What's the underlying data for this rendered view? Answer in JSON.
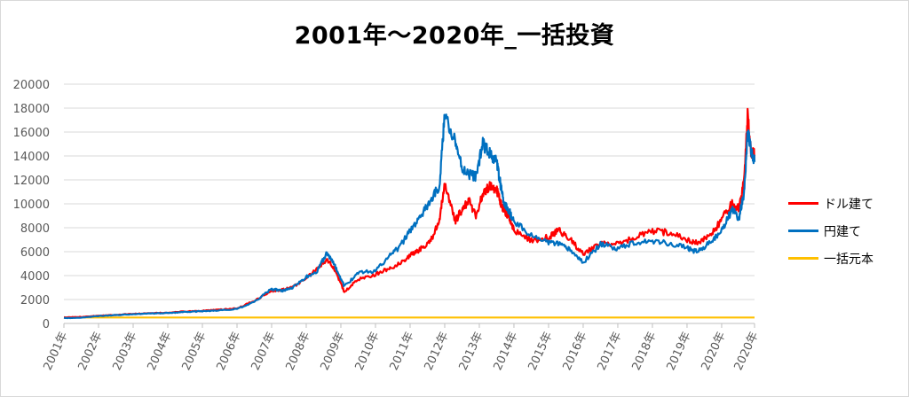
{
  "chart_data": {
    "type": "line",
    "title": "2001年～2020年_一括投資",
    "xlabel": "",
    "ylabel": "",
    "ylim": [
      0,
      20000
    ],
    "yticks": [
      0,
      2000,
      4000,
      6000,
      8000,
      10000,
      12000,
      14000,
      16000,
      18000,
      20000
    ],
    "xlim": [
      2001.0,
      2020.95
    ],
    "xticks": [
      {
        "value": 2001,
        "label": "2001年"
      },
      {
        "value": 2002,
        "label": "2002年"
      },
      {
        "value": 2003,
        "label": "2003年"
      },
      {
        "value": 2004,
        "label": "2004年"
      },
      {
        "value": 2005,
        "label": "2005年"
      },
      {
        "value": 2006,
        "label": "2006年"
      },
      {
        "value": 2007,
        "label": "2007年"
      },
      {
        "value": 2008,
        "label": "2008年"
      },
      {
        "value": 2009,
        "label": "2009年"
      },
      {
        "value": 2010,
        "label": "2010年"
      },
      {
        "value": 2011,
        "label": "2011年"
      },
      {
        "value": 2012,
        "label": "2012年"
      },
      {
        "value": 2013,
        "label": "2013年"
      },
      {
        "value": 2014,
        "label": "2014年"
      },
      {
        "value": 2015,
        "label": "2015年"
      },
      {
        "value": 2016,
        "label": "2016年"
      },
      {
        "value": 2017,
        "label": "2017年"
      },
      {
        "value": 2018,
        "label": "2018年"
      },
      {
        "value": 2019,
        "label": "2019年"
      },
      {
        "value": 2020,
        "label": "2020年"
      },
      {
        "value": 2020.95,
        "label": "2020年"
      }
    ],
    "grid": true,
    "legend_position": "right",
    "series": [
      {
        "name": "ドル建て",
        "color": "#ff0000",
        "x": [
          2001.0,
          2001.5,
          2002.0,
          2002.5,
          2003.0,
          2003.5,
          2004.0,
          2004.5,
          2005.0,
          2005.5,
          2006.0,
          2006.5,
          2007.0,
          2007.3,
          2007.6,
          2008.0,
          2008.3,
          2008.6,
          2008.85,
          2009.1,
          2009.5,
          2010.0,
          2010.4,
          2010.7,
          2011.0,
          2011.3,
          2011.6,
          2011.85,
          2012.0,
          2012.3,
          2012.5,
          2012.7,
          2012.9,
          2013.1,
          2013.3,
          2013.5,
          2013.6,
          2013.7,
          2013.85,
          2014.0,
          2014.5,
          2015.0,
          2015.3,
          2015.6,
          2016.0,
          2016.5,
          2017.0,
          2017.5,
          2018.0,
          2018.5,
          2019.0,
          2019.3,
          2019.7,
          2020.0,
          2020.3,
          2020.5,
          2020.65,
          2020.75,
          2020.85,
          2020.95
        ],
        "values": [
          500,
          550,
          650,
          720,
          800,
          850,
          900,
          1000,
          1050,
          1150,
          1250,
          1900,
          2700,
          2800,
          3000,
          3800,
          4500,
          5400,
          4400,
          2600,
          3700,
          4100,
          4600,
          5000,
          5700,
          6200,
          7000,
          8500,
          11800,
          8500,
          9500,
          10300,
          9000,
          10800,
          11500,
          11200,
          10200,
          9500,
          9000,
          7800,
          6900,
          7200,
          7800,
          7100,
          5800,
          6700,
          6600,
          7200,
          7700,
          7600,
          7000,
          6700,
          7400,
          8700,
          10000,
          9600,
          12000,
          17400,
          14300,
          14100
        ]
      },
      {
        "name": "円建て",
        "color": "#0070c0",
        "x": [
          2001.0,
          2001.5,
          2002.0,
          2002.5,
          2003.0,
          2003.5,
          2004.0,
          2004.5,
          2005.0,
          2005.5,
          2006.0,
          2006.5,
          2007.0,
          2007.3,
          2007.6,
          2008.0,
          2008.3,
          2008.6,
          2008.85,
          2009.1,
          2009.5,
          2010.0,
          2010.4,
          2010.7,
          2011.0,
          2011.3,
          2011.6,
          2011.85,
          2012.0,
          2012.3,
          2012.5,
          2012.7,
          2012.9,
          2013.1,
          2013.3,
          2013.5,
          2013.6,
          2013.7,
          2013.85,
          2014.0,
          2014.5,
          2015.0,
          2015.3,
          2015.6,
          2016.0,
          2016.5,
          2017.0,
          2017.5,
          2018.0,
          2018.5,
          2019.0,
          2019.3,
          2019.7,
          2020.0,
          2020.3,
          2020.5,
          2020.65,
          2020.75,
          2020.85,
          2020.95
        ],
        "values": [
          450,
          480,
          620,
          700,
          780,
          830,
          880,
          950,
          1020,
          1100,
          1200,
          1800,
          2900,
          2700,
          3000,
          3900,
          4300,
          5900,
          4700,
          3100,
          4200,
          4400,
          5600,
          6400,
          7800,
          8900,
          10300,
          11500,
          17500,
          15300,
          13000,
          12500,
          12300,
          15000,
          14200,
          13500,
          11800,
          10100,
          9400,
          8600,
          7300,
          6800,
          6600,
          6200,
          5100,
          6600,
          6300,
          6800,
          6900,
          6700,
          6300,
          6000,
          6800,
          7800,
          9500,
          8800,
          11000,
          16000,
          14500,
          13500
        ]
      },
      {
        "name": "一括元本",
        "color": "#ffc000",
        "x": [
          2001.0,
          2020.95
        ],
        "values": [
          500,
          500
        ]
      }
    ]
  }
}
